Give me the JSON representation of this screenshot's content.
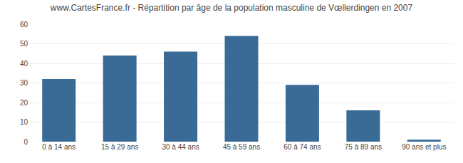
{
  "chart_data": {
    "type": "bar",
    "title": "www.CartesFrance.fr - Répartition par âge de la population masculine de Vœllerdingen en 2007",
    "categories": [
      "0 à 14 ans",
      "15 à 29 ans",
      "30 à 44 ans",
      "45 à 59 ans",
      "60 à 74 ans",
      "75 à 89 ans",
      "90 ans et plus"
    ],
    "values": [
      32,
      44,
      46,
      54,
      29,
      16,
      1
    ],
    "color": "#3a6b96",
    "ylim": [
      0,
      60
    ],
    "yticks": [
      0,
      10,
      20,
      30,
      40,
      50,
      60
    ],
    "grid": true
  }
}
